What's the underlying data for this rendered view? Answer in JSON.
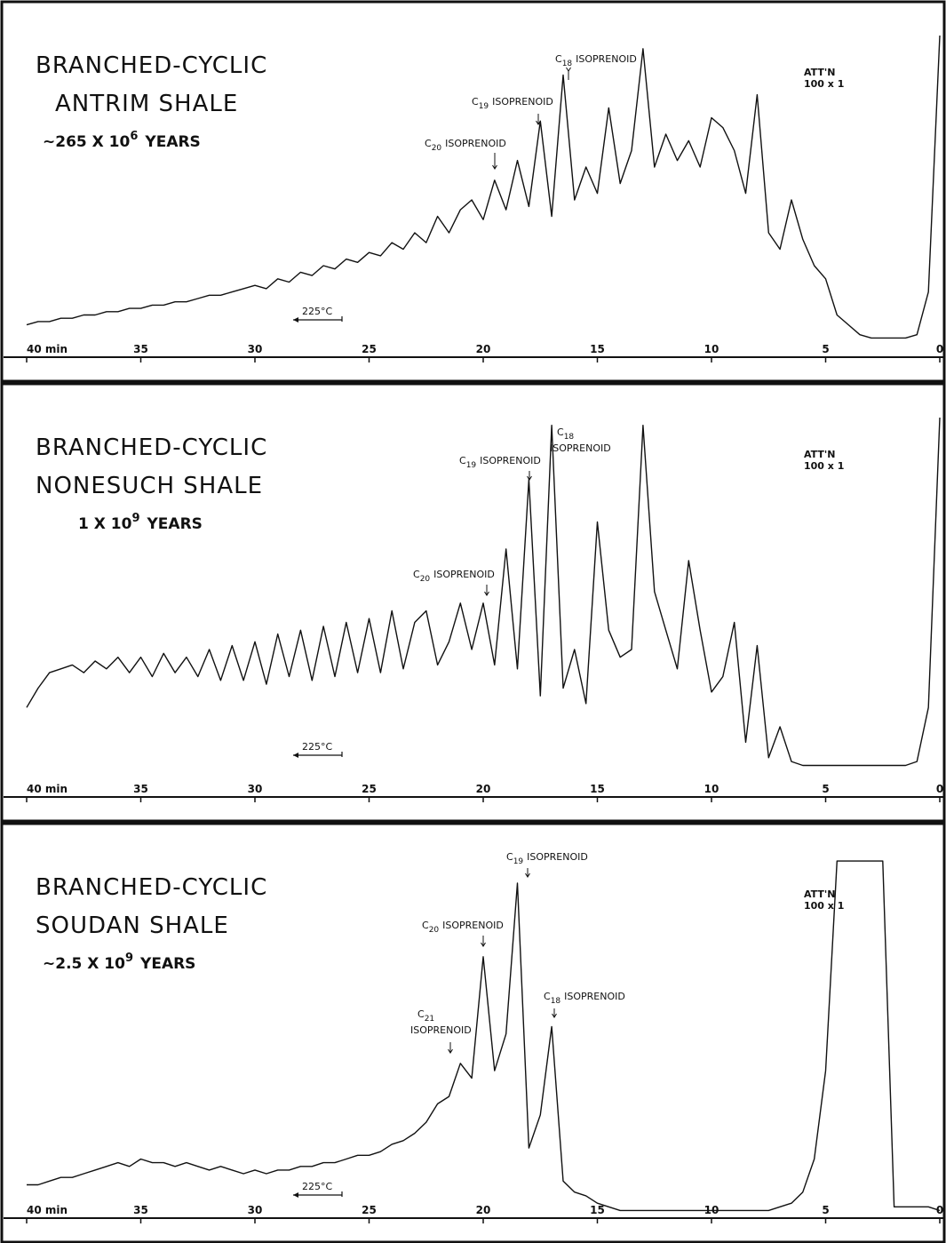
{
  "chart_data": [
    {
      "type": "line",
      "title": "BRANCHED-CYCLIC",
      "sample": "ANTRIM SHALE",
      "age": {
        "text": "~265 X 10",
        "sup": "6",
        "unit": "YEARS"
      },
      "attenuation": [
        "ATT'N",
        "100 x 1"
      ],
      "temperature": "225°C",
      "annotations": [
        {
          "label": "C",
          "sub": "20",
          "text": "ISOPRENOID"
        },
        {
          "label": "C",
          "sub": "19",
          "text": "ISOPRENOID"
        },
        {
          "label": "C",
          "sub": "18",
          "text": "ISOPRENOID"
        }
      ],
      "xlim": [
        40,
        0
      ],
      "ylim": [
        0,
        100
      ],
      "xticks": [
        {
          "value": 40,
          "label": "40 min"
        },
        35,
        30,
        25,
        20,
        15,
        10,
        5,
        0
      ],
      "color": "#111111",
      "x": [
        40,
        39.5,
        39,
        38.5,
        38,
        37.5,
        37,
        36.5,
        36,
        35.5,
        35,
        34.5,
        34,
        33.5,
        33,
        32.5,
        32,
        31.5,
        31,
        30.5,
        30,
        29.5,
        29,
        28.5,
        28,
        27.5,
        27,
        26.5,
        26,
        25.5,
        25,
        24.5,
        24,
        23.5,
        23,
        22.5,
        22,
        21.5,
        21,
        20.5,
        20,
        19.5,
        19,
        18.5,
        18,
        17.5,
        17,
        16.5,
        16,
        15.5,
        15,
        14.5,
        14,
        13.5,
        13,
        12.5,
        12,
        11.5,
        11,
        10.5,
        10,
        9.5,
        9,
        8.5,
        8,
        7.5,
        7,
        6.5,
        6,
        5.5,
        5,
        4.5,
        4,
        3.5,
        3,
        2.5,
        2,
        1.5,
        1,
        0.5,
        0
      ],
      "values": [
        12,
        13,
        13,
        14,
        14,
        15,
        15,
        16,
        16,
        17,
        17,
        18,
        18,
        19,
        19,
        20,
        21,
        21,
        22,
        23,
        24,
        23,
        26,
        25,
        28,
        27,
        30,
        29,
        32,
        31,
        34,
        33,
        37,
        35,
        40,
        37,
        45,
        40,
        47,
        50,
        44,
        56,
        47,
        62,
        48,
        74,
        45,
        88,
        50,
        60,
        52,
        78,
        55,
        65,
        96,
        60,
        70,
        62,
        68,
        60,
        75,
        72,
        65,
        52,
        82,
        40,
        35,
        50,
        38,
        30,
        26,
        15,
        12,
        9,
        8,
        8,
        8,
        8,
        9,
        22,
        100
      ]
    },
    {
      "type": "line",
      "title": "BRANCHED-CYCLIC",
      "sample": "NONESUCH SHALE",
      "age": {
        "text": "1 X 10",
        "sup": "9",
        "unit": "YEARS"
      },
      "attenuation": [
        "ATT'N",
        "100 x 1"
      ],
      "temperature": "225°C",
      "annotations": [
        {
          "label": "C",
          "sub": "19",
          "text": "ISOPRENOID"
        },
        {
          "label": "C",
          "sub": "20",
          "text": "ISOPRENOID"
        },
        {
          "label": "C",
          "sub": "18",
          "text": "ISOPRENOID"
        }
      ],
      "xlim": [
        40,
        0
      ],
      "ylim": [
        0,
        100
      ],
      "xticks": [
        {
          "value": 40,
          "label": "40 min"
        },
        35,
        30,
        25,
        20,
        15,
        10,
        5,
        0
      ],
      "color": "#111111",
      "x": [
        40,
        39.5,
        39,
        38.5,
        38,
        37.5,
        37,
        36.5,
        36,
        35.5,
        35,
        34.5,
        34,
        33.5,
        33,
        32.5,
        32,
        31.5,
        31,
        30.5,
        30,
        29.5,
        29,
        28.5,
        28,
        27.5,
        27,
        26.5,
        26,
        25.5,
        25,
        24.5,
        24,
        23.5,
        23,
        22.5,
        22,
        21.5,
        21,
        20.5,
        20,
        19.5,
        19,
        18.5,
        18,
        17.5,
        17,
        16.5,
        16,
        15.5,
        15,
        14.5,
        14,
        13.5,
        13,
        12.5,
        12,
        11.5,
        11,
        10.5,
        10,
        9.5,
        9,
        8.5,
        8,
        7.5,
        7,
        6.5,
        6,
        5.5,
        5,
        4.5,
        4,
        3.5,
        3,
        2.5,
        2,
        1.5,
        1,
        0.5,
        0
      ],
      "values": [
        25,
        30,
        34,
        35,
        36,
        34,
        37,
        35,
        38,
        34,
        38,
        33,
        39,
        34,
        38,
        33,
        40,
        32,
        41,
        32,
        42,
        31,
        44,
        33,
        45,
        32,
        46,
        33,
        47,
        34,
        48,
        34,
        50,
        35,
        47,
        50,
        36,
        42,
        52,
        40,
        52,
        36,
        66,
        35,
        84,
        28,
        98,
        30,
        40,
        26,
        73,
        45,
        38,
        40,
        98,
        55,
        45,
        35,
        63,
        45,
        29,
        33,
        47,
        16,
        41,
        12,
        20,
        11,
        10,
        10,
        10,
        10,
        10,
        10,
        10,
        10,
        10,
        10,
        11,
        25,
        100
      ]
    },
    {
      "type": "line",
      "title": "BRANCHED-CYCLIC",
      "sample": "SOUDAN SHALE",
      "age": {
        "text": "~2.5 X 10",
        "sup": "9",
        "unit": "YEARS"
      },
      "attenuation": [
        "ATT'N",
        "100 x 1"
      ],
      "temperature": "225°C",
      "annotations": [
        {
          "label": "C",
          "sub": "19",
          "text": "ISOPRENOID"
        },
        {
          "label": "C",
          "sub": "20",
          "text": "ISOPRENOID"
        },
        {
          "label": "C",
          "sub": "21",
          "text": "ISOPRENOID"
        },
        {
          "label": "C",
          "sub": "18",
          "text": "ISOPRENOID"
        }
      ],
      "xlim": [
        40,
        0
      ],
      "ylim": [
        0,
        100
      ],
      "xticks": [
        {
          "value": 40,
          "label": "40 min"
        },
        35,
        30,
        25,
        20,
        15,
        10,
        5,
        0
      ],
      "color": "#111111",
      "x": [
        40,
        39.5,
        39,
        38.5,
        38,
        37.5,
        37,
        36.5,
        36,
        35.5,
        35,
        34.5,
        34,
        33.5,
        33,
        32.5,
        32,
        31.5,
        31,
        30.5,
        30,
        29.5,
        29,
        28.5,
        28,
        27.5,
        27,
        26.5,
        26,
        25.5,
        25,
        24.5,
        24,
        23.5,
        23,
        22.5,
        22,
        21.5,
        21,
        20.5,
        20,
        19.5,
        19,
        18.5,
        18,
        17.5,
        17,
        16.5,
        16,
        15.5,
        15,
        14.5,
        14,
        13.5,
        13,
        12.5,
        12,
        11.5,
        11,
        10.5,
        10,
        9.5,
        9,
        8.5,
        8,
        7.5,
        7,
        6.5,
        6,
        5.5,
        5,
        4.5,
        4,
        3.5,
        3,
        2.5,
        2,
        1.5,
        1,
        0.5,
        0
      ],
      "values": [
        11,
        11,
        12,
        13,
        13,
        14,
        15,
        16,
        17,
        16,
        18,
        17,
        17,
        16,
        17,
        16,
        15,
        16,
        15,
        14,
        15,
        14,
        15,
        15,
        16,
        16,
        17,
        17,
        18,
        19,
        19,
        20,
        22,
        23,
        25,
        28,
        33,
        35,
        44,
        40,
        73,
        42,
        52,
        93,
        21,
        30,
        54,
        12,
        9,
        8,
        6,
        5,
        4,
        4,
        4,
        4,
        4,
        4,
        4,
        4,
        4,
        4,
        4,
        4,
        4,
        4,
        5,
        6,
        9,
        18,
        42,
        99,
        99,
        99,
        99,
        99,
        5,
        5,
        5,
        5,
        4
      ]
    }
  ]
}
